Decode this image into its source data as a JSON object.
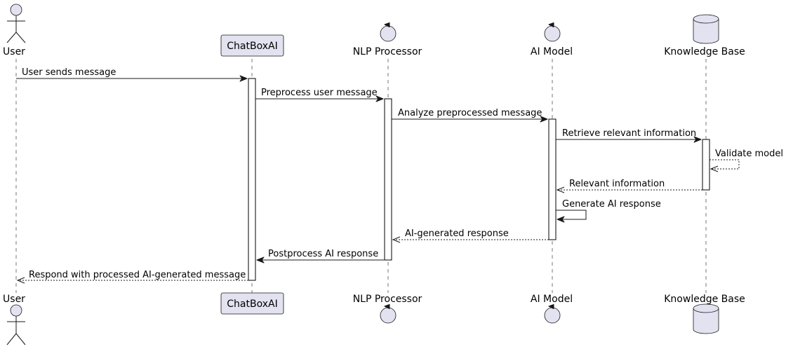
{
  "colors": {
    "participant_fill": "#e2e2f0",
    "line": "#181818",
    "lifeline": "#555555"
  },
  "participants": [
    {
      "id": "user",
      "label": "User",
      "kind": "actor"
    },
    {
      "id": "chatbox",
      "label": "ChatBoxAI",
      "kind": "participant"
    },
    {
      "id": "nlp",
      "label": "NLP Processor",
      "kind": "control"
    },
    {
      "id": "model",
      "label": "AI Model",
      "kind": "control"
    },
    {
      "id": "kb",
      "label": "Knowledge Base",
      "kind": "database"
    }
  ],
  "messages": [
    {
      "from": "user",
      "to": "chatbox",
      "label": "User sends message",
      "type": "sync"
    },
    {
      "from": "chatbox",
      "to": "nlp",
      "label": "Preprocess user message",
      "type": "sync"
    },
    {
      "from": "nlp",
      "to": "model",
      "label": "Analyze preprocessed message",
      "type": "sync"
    },
    {
      "from": "model",
      "to": "kb",
      "label": "Retrieve relevant information",
      "type": "sync"
    },
    {
      "from": "kb",
      "to": "kb",
      "label": "Validate model",
      "type": "return"
    },
    {
      "from": "kb",
      "to": "model",
      "label": "Relevant information",
      "type": "return"
    },
    {
      "from": "model",
      "to": "model",
      "label": "Generate AI response",
      "type": "sync"
    },
    {
      "from": "model",
      "to": "nlp",
      "label": "AI-generated response",
      "type": "return"
    },
    {
      "from": "nlp",
      "to": "chatbox",
      "label": "Postprocess AI response",
      "type": "sync"
    },
    {
      "from": "chatbox",
      "to": "user",
      "label": "Respond with processed AI-generated message",
      "type": "return"
    }
  ]
}
